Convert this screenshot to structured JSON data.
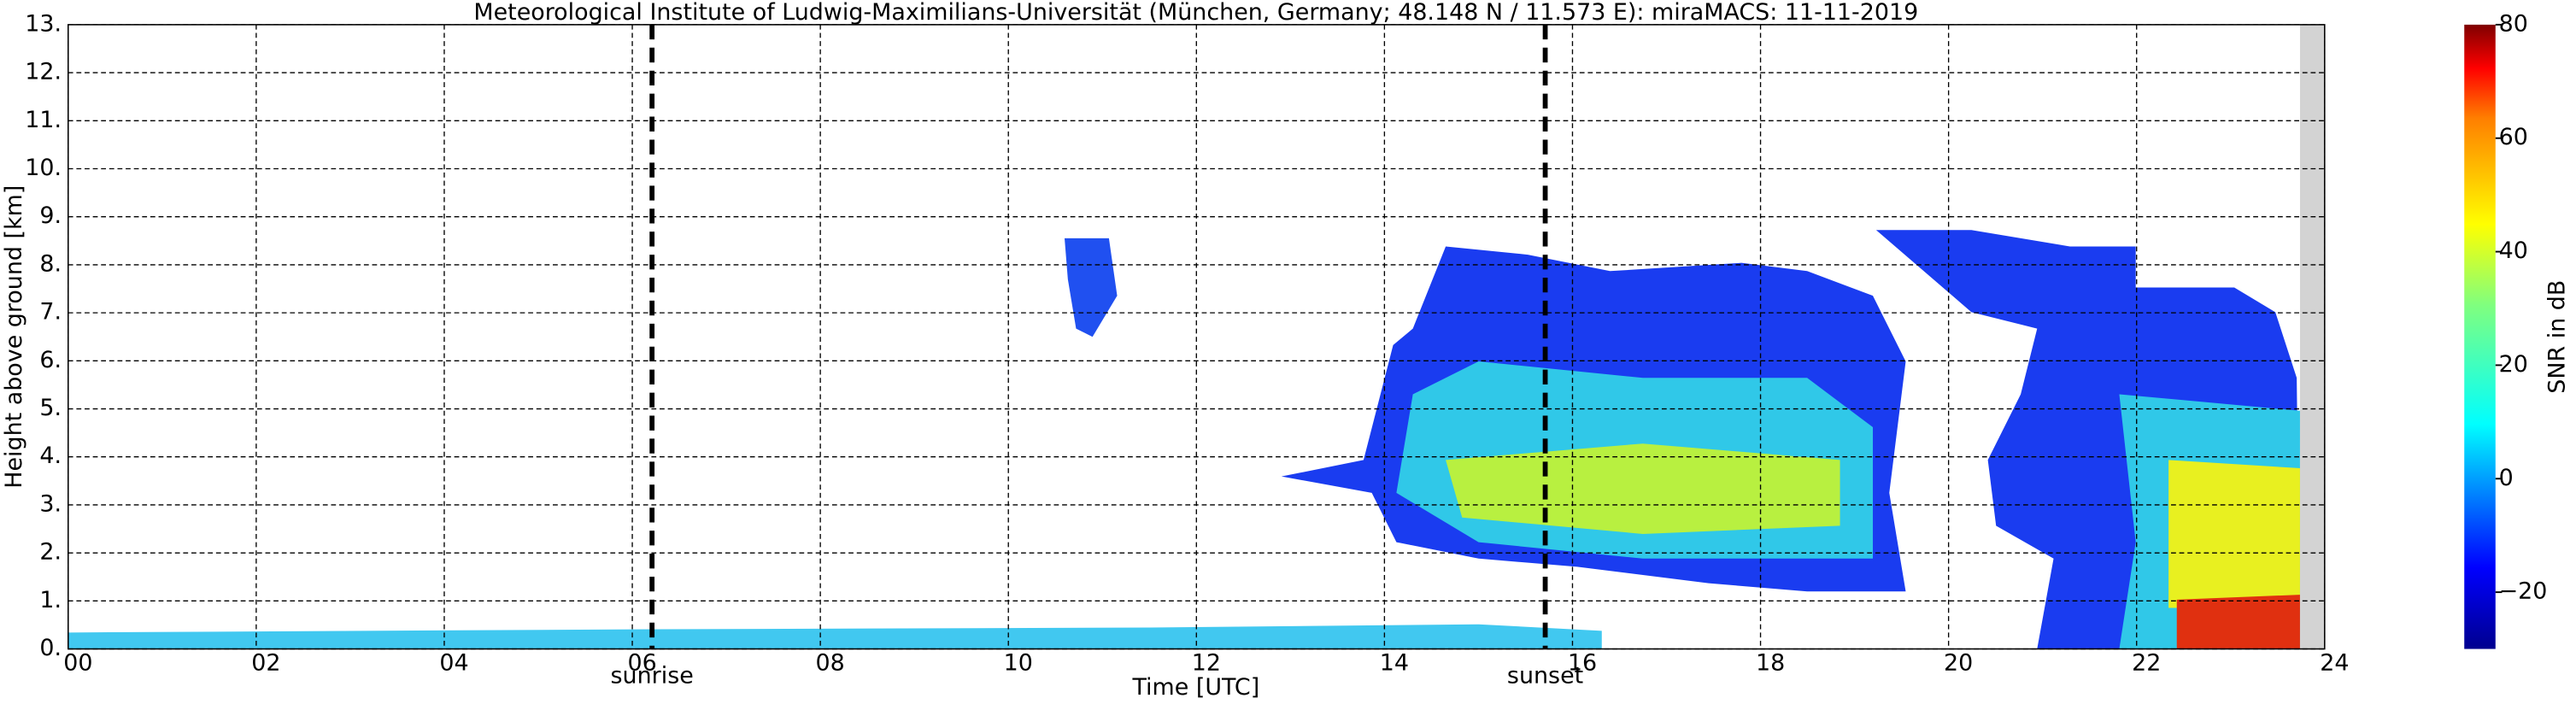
{
  "chart_data": {
    "type": "heatmap",
    "title": "Meteorological Institute of Ludwig-Maximilians-Universität (München, Germany; 48.148 N / 11.573 E):    miraMACS: 11-11-2019",
    "xlabel": "Time [UTC]",
    "ylabel": "Height above ground [km]",
    "xlim": [
      0,
      24
    ],
    "xticks": [
      {
        "value": 0,
        "label": "00"
      },
      {
        "value": 2,
        "label": "02"
      },
      {
        "value": 4,
        "label": "04"
      },
      {
        "value": 6,
        "label": "06"
      },
      {
        "value": 8,
        "label": "08"
      },
      {
        "value": 10,
        "label": "10"
      },
      {
        "value": 12,
        "label": "12"
      },
      {
        "value": 14,
        "label": "14"
      },
      {
        "value": 16,
        "label": "16"
      },
      {
        "value": 18,
        "label": "18"
      },
      {
        "value": 20,
        "label": "20"
      },
      {
        "value": 22,
        "label": "22"
      },
      {
        "value": 24,
        "label": "24"
      }
    ],
    "ylim": [
      0,
      13
    ],
    "yticks": [
      {
        "value": 0,
        "label": "0."
      },
      {
        "value": 1,
        "label": "1."
      },
      {
        "value": 2,
        "label": "2."
      },
      {
        "value": 3,
        "label": "3."
      },
      {
        "value": 4,
        "label": "4."
      },
      {
        "value": 5,
        "label": "5."
      },
      {
        "value": 6,
        "label": "6."
      },
      {
        "value": 7,
        "label": "7."
      },
      {
        "value": 8,
        "label": "8."
      },
      {
        "value": 9,
        "label": "9."
      },
      {
        "value": 10,
        "label": "10."
      },
      {
        "value": 11,
        "label": "11."
      },
      {
        "value": 12,
        "label": "12."
      },
      {
        "value": 13,
        "label": "13."
      }
    ],
    "grid": true,
    "annotations": [
      {
        "text": "sunrise",
        "x": 6.21
      },
      {
        "text": "sunset",
        "x": 15.71
      }
    ],
    "colorbar": {
      "label": "SNR in dB",
      "lim": [
        -30,
        80
      ],
      "ticks": [
        {
          "value": -20,
          "label": "−20"
        },
        0,
        20,
        40,
        60,
        80
      ]
    }
  }
}
